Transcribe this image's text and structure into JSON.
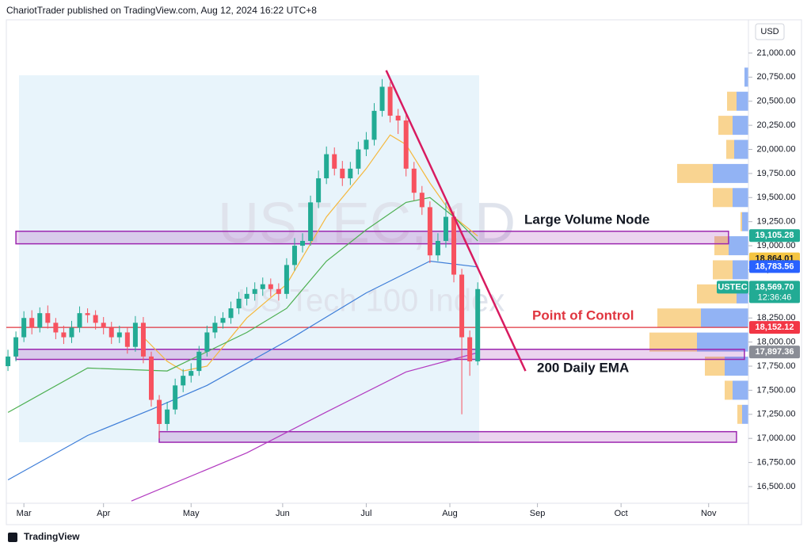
{
  "header": "ChariotTrader published on TradingView.com, Aug 12, 2024 16:22 UTC+8",
  "currency": "USD",
  "brand": "TradingView",
  "chart_data": {
    "type": "candlestick",
    "watermark": "USTEC, 1D",
    "watermark_subtitle": "US Tech 100 Index",
    "up_color": "#22ab94",
    "down_color": "#f7525f",
    "xlim": [
      -2,
      186
    ],
    "ylim": [
      16327,
      21345
    ],
    "xticks": [
      {
        "value": 4,
        "label": "Mar"
      },
      {
        "value": 24,
        "label": "Apr"
      },
      {
        "value": 46,
        "label": "May"
      },
      {
        "value": 69,
        "label": "Jun"
      },
      {
        "value": 90,
        "label": "Jul"
      },
      {
        "value": 111,
        "label": "Aug"
      },
      {
        "value": 133,
        "label": "Sep"
      },
      {
        "value": 154,
        "label": "Oct"
      },
      {
        "value": 176,
        "label": "Nov"
      }
    ],
    "yticks": [
      {
        "value": 16500,
        "label": "16,500.00"
      },
      {
        "value": 16750,
        "label": "16,750.00"
      },
      {
        "value": 17000,
        "label": "17,000.00"
      },
      {
        "value": 17250,
        "label": "17,250.00"
      },
      {
        "value": 17500,
        "label": "17,500.00"
      },
      {
        "value": 17750,
        "label": "17,750.00"
      },
      {
        "value": 18000,
        "label": "18,000.00"
      },
      {
        "value": 18250,
        "label": "18,250.00"
      },
      {
        "value": 18500,
        "label": "18,500.00"
      },
      {
        "value": 18750,
        "label": "18,750.00"
      },
      {
        "value": 19000,
        "label": "19,000.00"
      },
      {
        "value": 19250,
        "label": "19,250.00"
      },
      {
        "value": 19500,
        "label": "19,500.00"
      },
      {
        "value": 19750,
        "label": "19,750.00"
      },
      {
        "value": 20000,
        "label": "20,000.00"
      },
      {
        "value": 20250,
        "label": "20,250.00"
      },
      {
        "value": 20500,
        "label": "20,500.00"
      },
      {
        "value": 20750,
        "label": "20,750.00"
      },
      {
        "value": 21000,
        "label": "21,000.00"
      }
    ],
    "x": [
      0,
      2,
      4,
      6,
      8,
      10,
      12,
      14,
      16,
      18,
      20,
      22,
      24,
      26,
      28,
      30,
      32,
      34,
      36,
      38,
      40,
      42,
      44,
      46,
      48,
      50,
      52,
      54,
      56,
      58,
      60,
      62,
      64,
      66,
      68,
      70,
      72,
      74,
      76,
      78,
      80,
      82,
      84,
      86,
      88,
      90,
      92,
      94,
      96,
      98,
      100,
      102,
      104,
      106,
      108,
      110,
      112,
      114,
      116,
      118
    ],
    "open": [
      17750,
      17850,
      18050,
      18250,
      18150,
      18300,
      18200,
      18100,
      18050,
      18150,
      18300,
      18280,
      18200,
      18150,
      18050,
      18100,
      17950,
      18200,
      17850,
      17400,
      17150,
      17300,
      17550,
      17650,
      17700,
      17900,
      18100,
      18200,
      18250,
      18350,
      18450,
      18500,
      18550,
      18600,
      18550,
      18500,
      18800,
      19000,
      19050,
      19450,
      19700,
      19950,
      19800,
      19700,
      19800,
      20000,
      20100,
      20400,
      20650,
      20350,
      20300,
      19800,
      19550,
      19400,
      18900,
      19050,
      19300,
      18700,
      18050,
      17800
    ],
    "high": [
      17920,
      18110,
      18320,
      18330,
      18360,
      18380,
      18250,
      18170,
      18220,
      18370,
      18350,
      18330,
      18260,
      18210,
      18170,
      18150,
      18270,
      18260,
      17900,
      17450,
      17380,
      17620,
      17720,
      17780,
      17960,
      18170,
      18270,
      18310,
      18420,
      18520,
      18570,
      18620,
      18670,
      18660,
      18610,
      18870,
      19080,
      19130,
      19520,
      19780,
      20030,
      20020,
      19880,
      19870,
      20080,
      20180,
      20480,
      20730,
      20700,
      20420,
      20360,
      19870,
      19620,
      19460,
      19130,
      19450,
      19360,
      18760,
      18120,
      18620
    ],
    "low": [
      17700,
      17800,
      18000,
      18080,
      18100,
      18140,
      18030,
      17980,
      17990,
      18100,
      18200,
      18130,
      18080,
      17980,
      17990,
      17880,
      17900,
      17780,
      17330,
      17000,
      17080,
      17250,
      17480,
      17580,
      17650,
      17850,
      18040,
      18140,
      18190,
      18290,
      18380,
      18430,
      18480,
      18470,
      18430,
      18450,
      18740,
      18930,
      19000,
      19390,
      19640,
      19730,
      19620,
      19630,
      19740,
      19930,
      20040,
      20340,
      20280,
      20160,
      19720,
      19470,
      19320,
      18820,
      18840,
      18980,
      18620,
      17250,
      17650,
      17760
    ],
    "close": [
      17850,
      18050,
      18250,
      18150,
      18300,
      18200,
      18100,
      18050,
      18150,
      18300,
      18280,
      18200,
      18150,
      18050,
      18100,
      17950,
      18200,
      17850,
      17400,
      17150,
      17300,
      17550,
      17650,
      17700,
      17900,
      18100,
      18200,
      18250,
      18350,
      18450,
      18500,
      18550,
      18600,
      18550,
      18500,
      18800,
      19000,
      19050,
      19450,
      19700,
      19950,
      19800,
      19700,
      19800,
      20000,
      20100,
      20400,
      20650,
      20350,
      20300,
      19800,
      19550,
      19400,
      18900,
      19050,
      19300,
      18700,
      18050,
      17800,
      18550
    ],
    "moving_averages": [
      {
        "color": "#f5b83d",
        "x": [
          34,
          40,
          44,
          50,
          60,
          70,
          80,
          90,
          96,
          100,
          106,
          112,
          118
        ],
        "values": [
          18050,
          17800,
          17700,
          17750,
          18250,
          18600,
          19300,
          19800,
          20150,
          20050,
          19650,
          19300,
          19100
        ]
      },
      {
        "color": "#4caf50",
        "x": [
          0,
          20,
          40,
          60,
          70,
          80,
          90,
          100,
          106,
          112,
          118
        ],
        "values": [
          17270,
          17730,
          17700,
          18100,
          18350,
          18840,
          19165,
          19450,
          19500,
          19300,
          19050
        ]
      },
      {
        "color": "#3d7dd8",
        "x": [
          0,
          20,
          36,
          50,
          70,
          90,
          106,
          118
        ],
        "values": [
          16570,
          17030,
          17300,
          17550,
          18010,
          18510,
          18840,
          18780
        ]
      },
      {
        "color": "#b23ac0",
        "x": [
          31,
          60,
          80,
          100,
          118
        ],
        "values": [
          16350,
          16850,
          17275,
          17690,
          17890
        ]
      }
    ],
    "zones": [
      {
        "x": [
          2,
          181
        ],
        "range": [
          19020,
          19150
        ],
        "color": "#9c27b0"
      },
      {
        "x": [
          2,
          185
        ],
        "range": [
          17820,
          17925
        ],
        "color": "#9c27b0"
      },
      {
        "x": [
          38,
          183
        ],
        "range": [
          16960,
          17070
        ],
        "color": "#9c27b0"
      }
    ],
    "hlines": [
      {
        "value": 18152.12,
        "color": "#e0353f"
      }
    ],
    "trendline": {
      "x": [
        95,
        130
      ],
      "values": [
        20820,
        17700
      ],
      "color": "#d81b60"
    },
    "volume_profile": {
      "levels": [
        20750,
        20500,
        20250,
        20000,
        19750,
        19500,
        19250,
        19000,
        18750,
        18500,
        18250,
        18000,
        17750,
        17500,
        17250
      ],
      "blue": [
        5,
        15,
        20,
        18,
        45,
        20,
        8,
        25,
        20,
        15,
        60,
        65,
        30,
        20,
        8
      ],
      "orange": [
        0,
        12,
        18,
        10,
        45,
        25,
        2,
        18,
        25,
        50,
        55,
        60,
        25,
        10,
        6
      ],
      "blue_color": "#7fa6f2",
      "orange_color": "#f8cd7e"
    },
    "price_tags": [
      {
        "value": 19105.28,
        "label": "19,105.28",
        "color": "#22ab94",
        "text_color": "#ffffff"
      },
      {
        "value": 18864.01,
        "label": "18,864.01",
        "color": "#f5c542",
        "text_color": "#131722"
      },
      {
        "value": 18783.56,
        "label": "18,783.56",
        "color": "#2962ff",
        "text_color": "#ffffff"
      },
      {
        "value": 18569.7,
        "label": "18,569.70",
        "color": "#22ab94",
        "text_color": "#ffffff",
        "name": "USTEC",
        "countdown": "12:36:46"
      },
      {
        "value": 18152.12,
        "label": "18,152.12",
        "color": "#f23645",
        "text_color": "#ffffff"
      },
      {
        "value": 17897.36,
        "label": "17,897.36",
        "color": "#8a8d96",
        "text_color": "#ffffff"
      }
    ],
    "annotations": [
      "Large Volume Node",
      "Point of Control",
      "200 Daily EMA"
    ]
  }
}
